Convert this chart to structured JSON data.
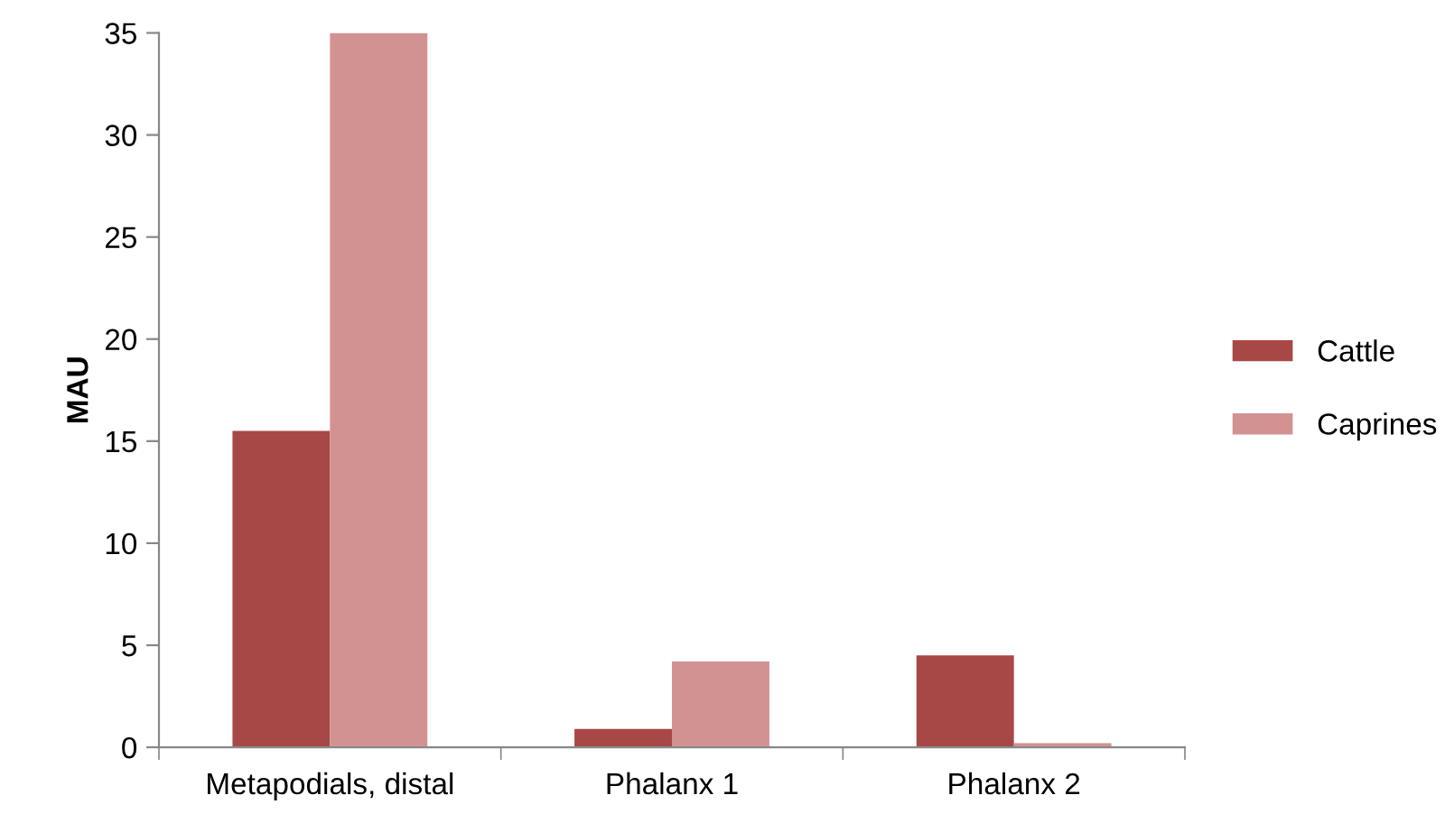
{
  "chart_data": {
    "type": "bar",
    "ylabel": "MAU",
    "categories": [
      "Metapodials, distal",
      "Phalanx 1",
      "Phalanx 2"
    ],
    "series": [
      {
        "name": "Cattle",
        "color": "#a84846",
        "values": [
          15.5,
          0.9,
          4.5
        ]
      },
      {
        "name": "Caprines",
        "color": "#d39292",
        "values": [
          35,
          4.2,
          0.2
        ]
      }
    ],
    "ylim": [
      0,
      35
    ],
    "yticks": [
      0,
      5,
      10,
      15,
      20,
      25,
      30,
      35
    ],
    "grid": false,
    "legend": "right"
  }
}
